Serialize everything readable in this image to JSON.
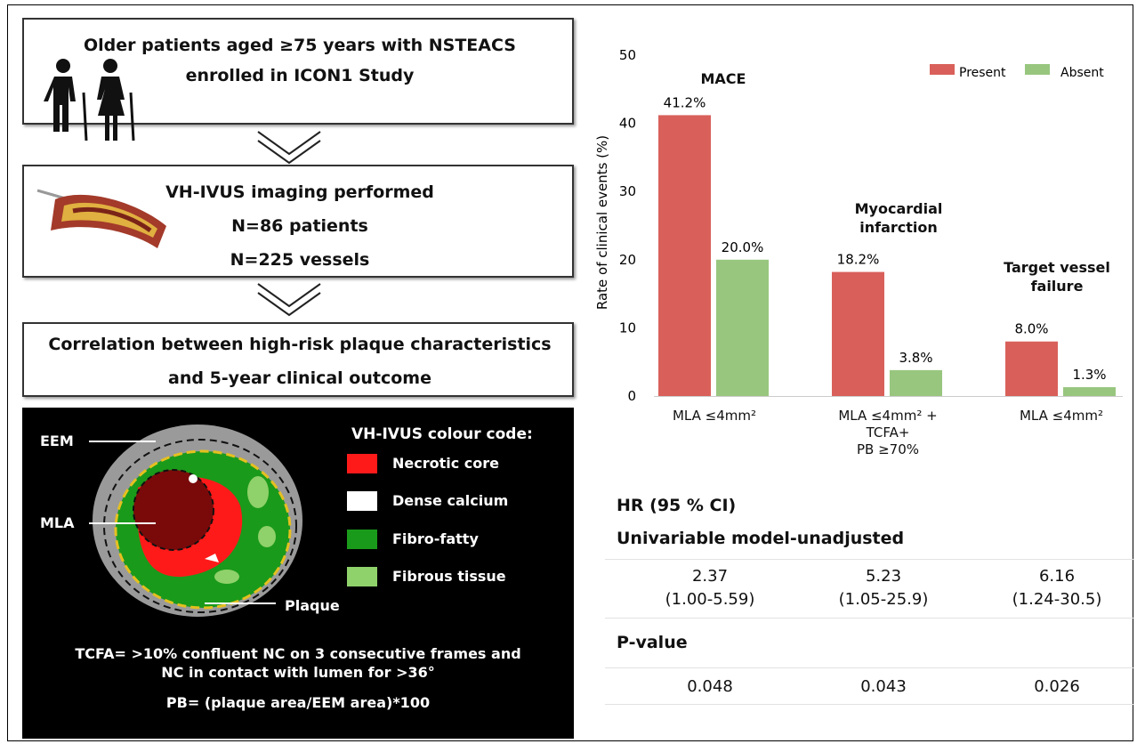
{
  "flow": {
    "steps": [
      {
        "lines": [
          "Older patients aged ≥75 years with NSTEACS",
          "enrolled in ICON1 Study"
        ]
      },
      {
        "lines": [
          "VH-IVUS imaging performed",
          "N=86 patients",
          "N=225 vessels"
        ]
      },
      {
        "lines": [
          "Correlation between high-risk plaque characteristics",
          "and 5-year clinical outcome"
        ]
      }
    ]
  },
  "ivus": {
    "title": "VH-IVUS colour code:",
    "legend": [
      "Necrotic core",
      "Dense calcium",
      "Fibro-fatty",
      "Fibrous tissue"
    ],
    "labels": [
      "EEM",
      "MLA",
      "Plaque"
    ],
    "notes": [
      "TCFA= >10% confluent NC on 3 consecutive frames and",
      "NC in contact with lumen for >36°",
      "PB= (plaque area/EEM area)*100"
    ]
  },
  "chart_data": {
    "type": "bar",
    "y_label": "Rate of clinical events  (%)",
    "categories": [
      "MLA ≤4mm²",
      "MLA ≤4mm² +\nTCFA+\nPB ≥70%",
      "MLA ≤4mm²"
    ],
    "annotations": [
      "MACE",
      "Myocardial infarction",
      "Target vessel failure"
    ],
    "series": [
      {
        "name": "Present",
        "color": "#d9605a",
        "values": [
          41.2,
          18.2,
          8.0
        ],
        "value_labels": [
          "41.2%",
          "18.2%",
          "8.0%"
        ]
      },
      {
        "name": "Absent",
        "color": "#98c67f",
        "values": [
          20.0,
          3.8,
          1.3
        ],
        "value_labels": [
          "20.0%",
          "3.8%",
          "1.3%"
        ]
      }
    ],
    "ylim": [
      0,
      50
    ],
    "yticks": [
      0,
      10,
      20,
      30,
      40,
      50
    ],
    "grid": false,
    "legend": "top-right"
  },
  "table": {
    "title": "HR (95 % CI)",
    "sections": [
      {
        "name": "Univariable model-unadjusted",
        "cells": [
          [
            "2.37",
            "(1.00-5.59)"
          ],
          [
            "5.23",
            "(1.05-25.9)"
          ],
          [
            "6.16",
            "(1.24-30.5)"
          ]
        ]
      },
      {
        "name": "P-value",
        "cells": [
          [
            "0.048"
          ],
          [
            "0.043"
          ],
          [
            "0.026"
          ]
        ]
      }
    ]
  }
}
